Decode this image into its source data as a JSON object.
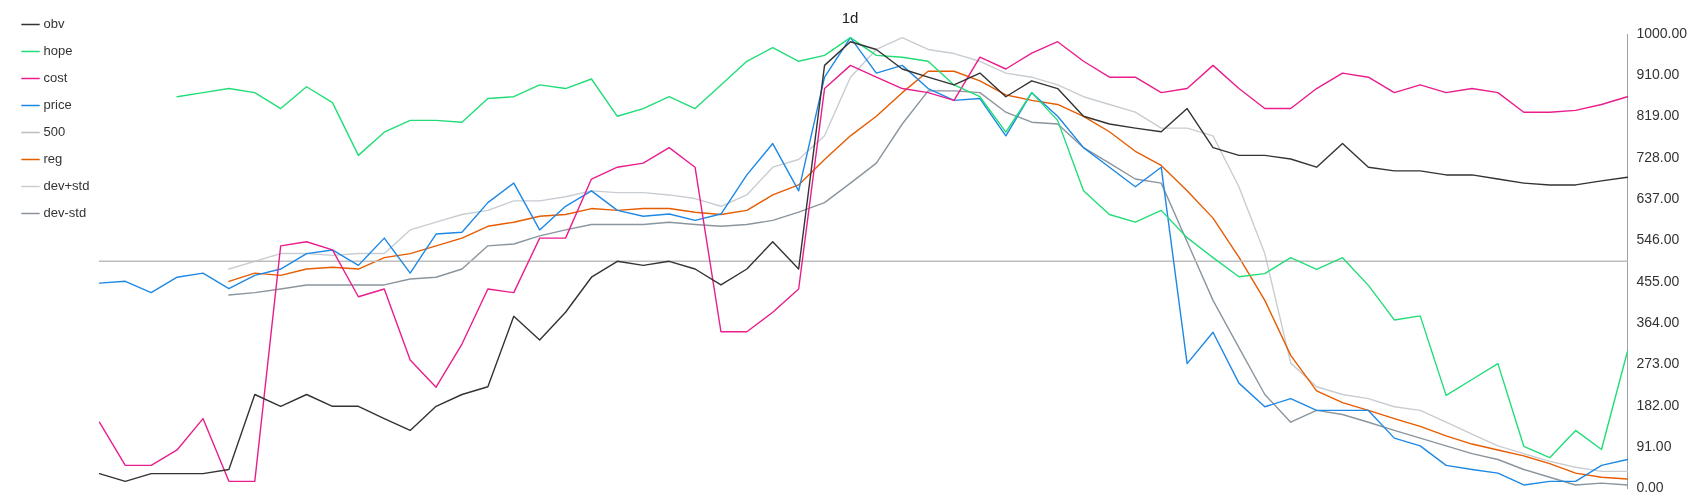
{
  "chart_data": {
    "type": "line",
    "title": "1d",
    "categories": [
      null,
      null,
      null,
      null,
      null,
      null,
      null,
      null,
      null,
      null,
      null,
      null,
      null,
      null,
      null,
      null,
      null,
      null,
      null,
      null,
      null,
      null,
      null,
      null,
      null,
      null,
      null,
      null,
      null,
      null,
      null,
      null,
      null,
      null,
      null,
      null,
      null,
      null,
      null,
      null,
      null,
      null,
      null,
      null,
      null,
      null,
      null,
      null,
      null,
      null,
      null,
      null,
      null,
      null,
      null,
      null,
      null,
      null,
      null,
      null
    ],
    "series": [
      {
        "name": "obv",
        "color": "#333333",
        "values": [
          33,
          16,
          33,
          33,
          33,
          42,
          207,
          181,
          207,
          181,
          181,
          154,
          128,
          181,
          207,
          224,
          379,
          327,
          388,
          465,
          500,
          491,
          500,
          483,
          448,
          483,
          543,
          483,
          931,
          983,
          966,
          923,
          905,
          888,
          914,
          862,
          897,
          880,
          819,
          802,
          793,
          785,
          836,
          750,
          733,
          733,
          725,
          707,
          759,
          707,
          699,
          699,
          690,
          690,
          681,
          672,
          668,
          668,
          677,
          685
        ]
      },
      {
        "name": "hope",
        "color": "#22dd77",
        "values": [
          null,
          null,
          null,
          862,
          871,
          880,
          871,
          836,
          884,
          849,
          733,
          784,
          810,
          810,
          806,
          858,
          862,
          888,
          880,
          901,
          819,
          836,
          862,
          836,
          888,
          940,
          970,
          940,
          953,
          992,
          953,
          949,
          940,
          888,
          862,
          784,
          871,
          810,
          655,
          603,
          586,
          612,
          552,
          508,
          466,
          473,
          508,
          482,
          508,
          447,
          371,
          380,
          205,
          240,
          275,
          93,
          68,
          128,
          86,
          301
        ]
      },
      {
        "name": "cost",
        "color": "#e91e8c",
        "values": [
          146,
          51,
          51,
          85,
          154,
          16,
          16,
          534,
          543,
          525,
          422,
          439,
          283,
          223,
          318,
          439,
          431,
          551,
          551,
          681,
          707,
          716,
          750,
          707,
          345,
          345,
          388,
          439,
          880,
          931,
          905,
          880,
          871,
          854,
          949,
          923,
          958,
          983,
          940,
          905,
          905,
          871,
          880,
          931,
          880,
          836,
          836,
          880,
          914,
          905,
          871,
          888,
          871,
          880,
          871,
          828,
          828,
          832,
          845,
          862
        ]
      },
      {
        "name": "price",
        "color": "#1e88e5",
        "values": [
          452,
          456,
          431,
          465,
          474,
          440,
          469,
          483,
          517,
          525,
          491,
          551,
          474,
          560,
          564,
          629,
          672,
          569,
          621,
          655,
          612,
          599,
          604,
          590,
          604,
          690,
          759,
          655,
          905,
          992,
          914,
          931,
          880,
          854,
          858,
          776,
          871,
          819,
          750,
          707,
          664,
          707,
          275,
          344,
          232,
          180,
          198,
          172,
          172,
          172,
          111,
          94,
          51,
          42,
          34,
          8,
          16,
          16,
          51,
          64
        ]
      },
      {
        "name": "500",
        "color": "#bdbdbd",
        "values": [
          500,
          500,
          500,
          500,
          500,
          500,
          500,
          500,
          500,
          500,
          500,
          500,
          500,
          500,
          500,
          500,
          500,
          500,
          500,
          500,
          500,
          500,
          500,
          500,
          500,
          500,
          500,
          500,
          500,
          500,
          500,
          500,
          500,
          500,
          500,
          500,
          500,
          500,
          500,
          500,
          500,
          500,
          500,
          500,
          500,
          500,
          500,
          500,
          500,
          500,
          500,
          500,
          500,
          500,
          500,
          500,
          500,
          500,
          500,
          500
        ]
      },
      {
        "name": "reg",
        "color": "#e65c00",
        "values": [
          null,
          null,
          null,
          null,
          null,
          456,
          474,
          469,
          483,
          487,
          483,
          508,
          517,
          534,
          551,
          577,
          586,
          599,
          603,
          616,
          612,
          616,
          616,
          608,
          603,
          612,
          646,
          668,
          724,
          776,
          819,
          871,
          918,
          918,
          897,
          866,
          854,
          845,
          819,
          785,
          742,
          711,
          655,
          595,
          509,
          414,
          293,
          215,
          189,
          172,
          154,
          137,
          116,
          98,
          85,
          72,
          55,
          34,
          25,
          21
        ]
      },
      {
        "name": "dev+std",
        "color": "#c8cdd2",
        "values": [
          null,
          null,
          null,
          null,
          null,
          483,
          500,
          517,
          517,
          513,
          517,
          517,
          569,
          586,
          603,
          612,
          633,
          633,
          642,
          655,
          651,
          651,
          646,
          638,
          621,
          646,
          707,
          724,
          776,
          905,
          966,
          992,
          966,
          957,
          940,
          914,
          905,
          888,
          862,
          845,
          828,
          793,
          793,
          776,
          664,
          517,
          276,
          224,
          207,
          198,
          180,
          172,
          146,
          120,
          94,
          77,
          60,
          47,
          38,
          38
        ]
      },
      {
        "name": "dev-std",
        "color": "#8a959e",
        "values": [
          null,
          null,
          null,
          null,
          null,
          426,
          431,
          439,
          448,
          448,
          448,
          448,
          461,
          465,
          483,
          534,
          538,
          556,
          569,
          581,
          581,
          581,
          586,
          581,
          577,
          581,
          590,
          608,
          629,
          672,
          716,
          802,
          875,
          875,
          871,
          828,
          806,
          802,
          750,
          716,
          681,
          672,
          543,
          414,
          310,
          207,
          146,
          172,
          163,
          146,
          128,
          111,
          94,
          77,
          64,
          42,
          25,
          8,
          12,
          8
        ]
      }
    ],
    "ylim": [
      0,
      1000
    ],
    "yticks": [
      {
        "value": 0,
        "label": "0.00"
      },
      {
        "value": 91,
        "label": "91.00"
      },
      {
        "value": 182,
        "label": "182.00"
      },
      {
        "value": 273,
        "label": "273.00"
      },
      {
        "value": 364,
        "label": "364.00"
      },
      {
        "value": 455,
        "label": "455.00"
      },
      {
        "value": 546,
        "label": "546.00"
      },
      {
        "value": 637,
        "label": "637.00"
      },
      {
        "value": 728,
        "label": "728.00"
      },
      {
        "value": 819,
        "label": "819.00"
      },
      {
        "value": 910,
        "label": "910.00"
      },
      {
        "value": 1000,
        "label": "1000.00"
      }
    ],
    "tick_labels": "y",
    "grid": false,
    "legend": "top left",
    "marker": "none",
    "line_style": "solid"
  }
}
